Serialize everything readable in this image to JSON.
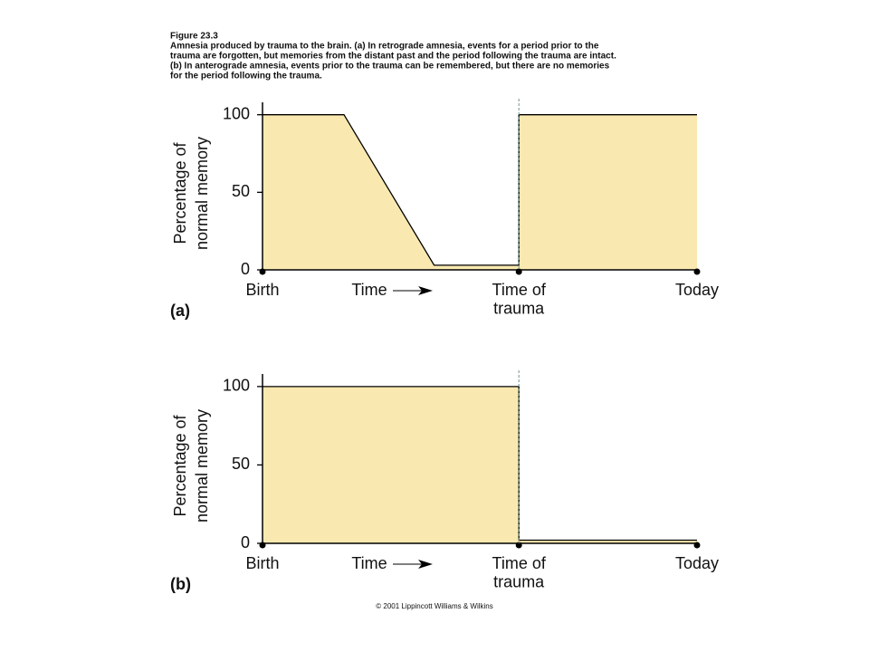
{
  "header": {
    "title": "Figure 23.3",
    "caption": [
      "Amnesia produced by trauma to the brain. (a) In retrograde amnesia, events for a period prior to the",
      "trauma are forgotten, but memories from the distant past and the period following the trauma are intact.",
      "(b) In anterograde amnesia, events prior to the trauma can be remembered, but there are no memories",
      "for the period following the trauma."
    ]
  },
  "chart_data": [
    {
      "type": "area",
      "panel": "(a)",
      "ylabel": [
        "Percentage of",
        "normal memory"
      ],
      "xlabel": "Time",
      "x": [
        0,
        18.75,
        39.5,
        59,
        59,
        100
      ],
      "values": [
        100,
        100,
        3,
        3,
        100,
        100
      ],
      "color": "#f9e9b0",
      "line_color": "#000000",
      "xlim": [
        0,
        100
      ],
      "xticks": [
        {
          "value": 0,
          "label": "Birth"
        },
        {
          "value": 59,
          "label": "Time of\ntrauma"
        },
        {
          "value": 100,
          "label": "Today"
        }
      ],
      "ylim": [
        0,
        108
      ],
      "yticks": [
        0,
        50,
        100
      ]
    },
    {
      "type": "area",
      "panel": "(b)",
      "ylabel": [
        "Percentage of",
        "normal memory"
      ],
      "xlabel": "Time",
      "x": [
        0,
        59,
        59,
        100
      ],
      "values": [
        100,
        100,
        2,
        2
      ],
      "color": "#f9e9b0",
      "line_color": "#000000",
      "xlim": [
        0,
        100
      ],
      "xticks": [
        {
          "value": 0,
          "label": "Birth"
        },
        {
          "value": 59,
          "label": "Time of\ntrauma"
        },
        {
          "value": 100,
          "label": "Today"
        }
      ],
      "ylim": [
        0,
        108
      ],
      "yticks": [
        0,
        50,
        100
      ]
    }
  ],
  "footer": "© 2001 Lippincott Williams & Wilkins"
}
